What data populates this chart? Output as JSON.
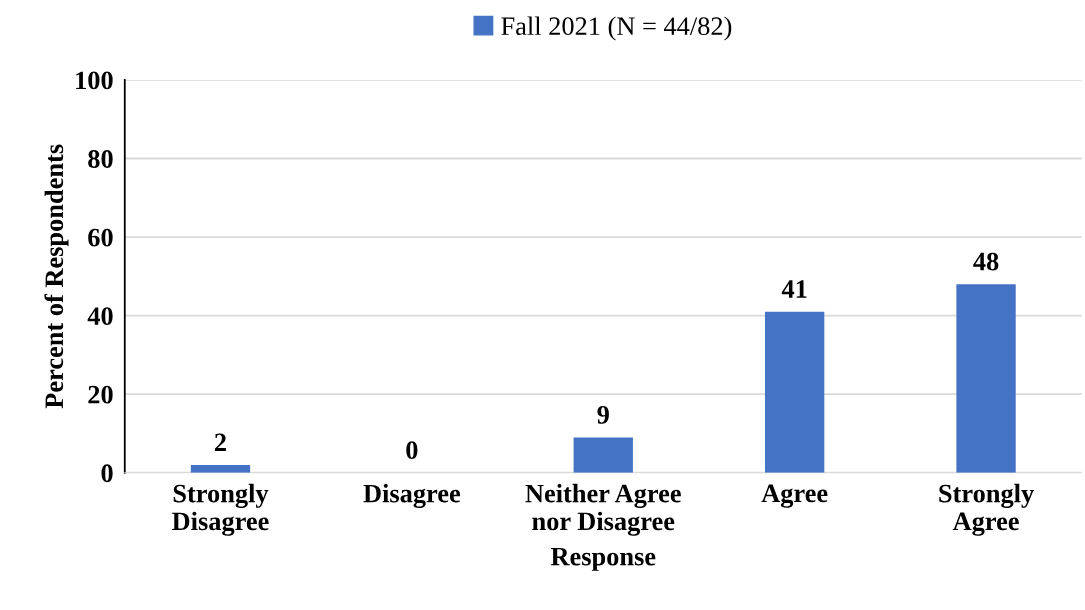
{
  "chart_data": {
    "type": "bar",
    "xlabel": "Response",
    "ylabel": "Percent of Respondents",
    "categories": [
      "Strongly\nDisagree",
      "Disagree",
      "Neither Agree\nnor Disagree",
      "Agree",
      "Strongly\nAgree"
    ],
    "series": [
      {
        "name": "Fall 2021 (N = 44/82)",
        "color": "#4472c4",
        "values": [
          2,
          0,
          9,
          41,
          48
        ]
      }
    ],
    "ylim": [
      0,
      100
    ],
    "yticks": [
      0,
      20,
      40,
      60,
      80,
      100
    ],
    "grid": "y",
    "legend": "top",
    "data_labels": true
  }
}
